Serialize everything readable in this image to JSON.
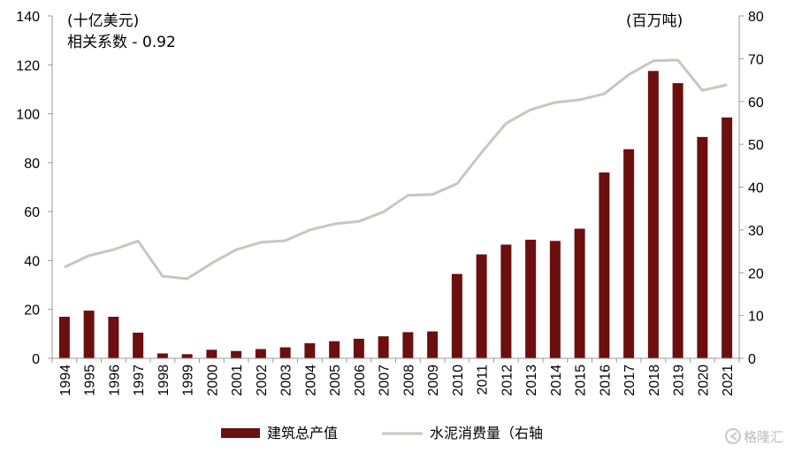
{
  "chart_data": {
    "type": "bar",
    "categories": [
      "1994",
      "1995",
      "1996",
      "1997",
      "1998",
      "1999",
      "2000",
      "2001",
      "2002",
      "2003",
      "2004",
      "2005",
      "2006",
      "2007",
      "2008",
      "2009",
      "2010",
      "2011",
      "2012",
      "2013",
      "2014",
      "2015",
      "2016",
      "2017",
      "2018",
      "2019",
      "2020",
      "2021"
    ],
    "series": [
      {
        "name": "建筑总产值",
        "type": "bar",
        "axis": "left",
        "color": "#6b0f0f",
        "values": [
          17,
          19.5,
          17,
          10.5,
          2,
          1.7,
          3.5,
          3,
          3.8,
          4.5,
          6.2,
          7,
          8,
          9,
          10.7,
          11,
          34.5,
          42.5,
          46.5,
          48.5,
          48,
          53,
          76,
          85.5,
          117.5,
          112.5,
          90.5,
          98.5
        ]
      },
      {
        "name": "水泥消费量（右轴",
        "type": "line",
        "axis": "right",
        "color": "#c4c8bd",
        "values": [
          21.3,
          24,
          25.4,
          27.4,
          19.2,
          18.6,
          22.2,
          25.4,
          27.1,
          27.5,
          30,
          31.4,
          32,
          34.2,
          38.1,
          38.3,
          40.8,
          48.1,
          54.9,
          58.1,
          59.8,
          60.4,
          61.8,
          66.3,
          69.5,
          69.7,
          62.6,
          63.9
        ]
      }
    ],
    "left_axis": {
      "ylim": [
        0,
        140
      ],
      "ticks": [
        0,
        20,
        40,
        60,
        80,
        100,
        120,
        140
      ],
      "unit_label": "(十亿美元)"
    },
    "right_axis": {
      "ylim": [
        0,
        80
      ],
      "ticks": [
        0,
        10,
        20,
        30,
        40,
        50,
        60,
        70,
        80
      ],
      "unit_label": "(百万吨)"
    },
    "annotation": "相关系数 - 0.92",
    "legend_position": "bottom",
    "grid": false
  },
  "watermark": {
    "text": "格隆汇",
    "icon": "watermark-logo-icon"
  }
}
